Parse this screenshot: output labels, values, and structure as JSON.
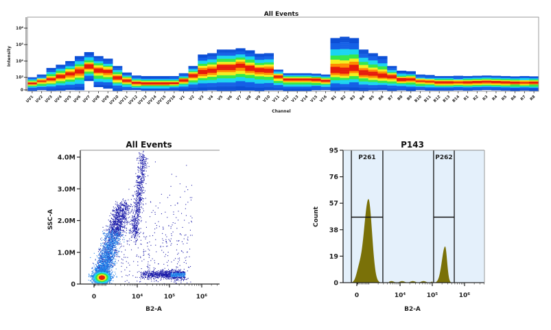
{
  "chart_data": [
    {
      "type": "heatmap",
      "title": "All Events",
      "xlabel": "Channel",
      "ylabel": "Intensity",
      "yscale": "biexponential",
      "ylim": [
        0,
        1500000
      ],
      "yticks": [
        {
          "v": 0,
          "label": "0"
        },
        {
          "v": 1000,
          "label": "10³"
        },
        {
          "v": 10000,
          "label": "10⁴"
        },
        {
          "v": 100000,
          "label": "10⁵"
        },
        {
          "v": 1000000,
          "label": "10⁶"
        }
      ],
      "colormap": [
        "#1560e6",
        "#1ad4f0",
        "#35e84a",
        "#f4ef1e",
        "#ff8c00",
        "#e61a0a"
      ],
      "channels": [
        "UV1",
        "UV2",
        "UV3",
        "UV4",
        "UV5",
        "UV6",
        "UV7",
        "UV8",
        "UV9",
        "UV10",
        "UV11",
        "UV12",
        "UV13",
        "UV14",
        "UV15",
        "UV16",
        "V1",
        "V2",
        "V3",
        "V4",
        "V5",
        "V6",
        "V7",
        "V8",
        "V9",
        "V10",
        "V11",
        "V12",
        "V13",
        "V14",
        "V15",
        "V16",
        "B1",
        "B2",
        "B3",
        "B4",
        "B5",
        "B6",
        "B7",
        "B8",
        "B9",
        "B10",
        "B11",
        "B12",
        "B13",
        "B14",
        "R1",
        "R2",
        "R3",
        "R4",
        "R5",
        "R6",
        "R7",
        "R8"
      ],
      "max_intensity": [
        1000,
        1500,
        3800,
        6000,
        10000,
        20000,
        35000,
        20000,
        14000,
        5000,
        2000,
        1300,
        1200,
        1200,
        1200,
        1200,
        1800,
        5000,
        25000,
        30000,
        50000,
        50000,
        60000,
        45000,
        28000,
        30000,
        3000,
        1800,
        1800,
        1800,
        1700,
        1500,
        250000,
        300000,
        250000,
        50000,
        30000,
        20000,
        5000,
        2600,
        2400,
        1500,
        1400,
        1200,
        1200,
        1250,
        1200,
        1250,
        1300,
        1250,
        1200,
        1150,
        1200,
        1150
      ],
      "peak_intensity": [
        400,
        600,
        800,
        1300,
        1800,
        2700,
        5000,
        3000,
        2500,
        1000,
        700,
        450,
        400,
        400,
        400,
        420,
        700,
        1500,
        2500,
        3000,
        4500,
        4500,
        6000,
        4000,
        3000,
        3000,
        1300,
        800,
        800,
        800,
        800,
        650,
        2800,
        2500,
        3700,
        2000,
        1700,
        1300,
        1200,
        800,
        800,
        600,
        550,
        500,
        500,
        500,
        500,
        520,
        550,
        520,
        500,
        480,
        480,
        480
      ],
      "min_intensity": [
        0,
        0,
        0,
        0,
        0,
        0,
        600,
        150,
        100,
        0,
        0,
        0,
        0,
        0,
        0,
        0,
        0,
        0,
        0,
        0,
        0,
        0,
        0,
        0,
        0,
        0,
        0,
        0,
        0,
        0,
        0,
        0,
        0,
        0,
        0,
        0,
        0,
        0,
        0,
        0,
        0,
        0,
        0,
        0,
        0,
        0,
        0,
        0,
        0,
        0,
        0,
        0,
        0,
        0
      ]
    },
    {
      "type": "scatter",
      "title": "All Events",
      "xlabel": "B2-A",
      "ylabel": "SSC-A",
      "xscale": "biexponential",
      "xlim": [
        -1050,
        4200000
      ],
      "ylim": [
        0,
        4200000
      ],
      "xticks": [
        {
          "v": 0,
          "label": "0"
        },
        {
          "v": 10000,
          "label": "10⁴"
        },
        {
          "v": 100000,
          "label": "10⁵"
        },
        {
          "v": 1000000,
          "label": "10⁶"
        }
      ],
      "yticks": [
        {
          "v": 0,
          "label": "0"
        },
        {
          "v": 1000000,
          "label": "1.0M"
        },
        {
          "v": 2000000,
          "label": "2.0M"
        },
        {
          "v": 3000000,
          "label": "3.0M"
        },
        {
          "v": 4000000,
          "label": "4.0M"
        }
      ],
      "point_color": "#1a1aa8",
      "populations": [
        {
          "shape": "blob",
          "x": 500,
          "y": 220000,
          "sy": 90000
        },
        {
          "shape": "streak",
          "from": [
            500,
            300000
          ],
          "to": [
            3500,
            2500000
          ]
        },
        {
          "shape": "streak",
          "from": [
            8000,
            1500000
          ],
          "to": [
            15000,
            4100000
          ]
        },
        {
          "shape": "band",
          "x_from": 12000,
          "x_to": 300000,
          "y": 300000
        },
        {
          "shape": "sparse",
          "x_from": 3000,
          "x_to": 500000,
          "y_from": 0,
          "y_to": 4000000
        }
      ]
    },
    {
      "type": "area",
      "title": "P143",
      "xlabel": "B2-A",
      "ylabel": "Count",
      "xscale": "biexponential",
      "xlim": [
        -1050,
        4200000
      ],
      "ylim": [
        0,
        95
      ],
      "xticks": [
        {
          "v": 0,
          "label": "0"
        },
        {
          "v": 10000,
          "label": "10⁴"
        },
        {
          "v": 100000,
          "label": "10⁵"
        },
        {
          "v": 1000000,
          "label": "10⁶"
        }
      ],
      "yticks": [
        {
          "v": 0,
          "label": "0"
        },
        {
          "v": 19,
          "label": "19"
        },
        {
          "v": 38,
          "label": "38"
        },
        {
          "v": 57,
          "label": "57"
        },
        {
          "v": 76,
          "label": "76"
        },
        {
          "v": 95,
          "label": "95"
        }
      ],
      "fill_color": "#7a7108",
      "background_color": "#e4f0fb",
      "peaks": [
        {
          "x": 850,
          "count": 60
        },
        {
          "x": 250000,
          "count": 26
        }
      ],
      "gates": [
        {
          "name": "P261",
          "x_from": -365,
          "x_to": 2860,
          "level": 47
        },
        {
          "name": "P262",
          "x_from": 110000,
          "x_to": 480000,
          "level": 47
        }
      ]
    }
  ]
}
